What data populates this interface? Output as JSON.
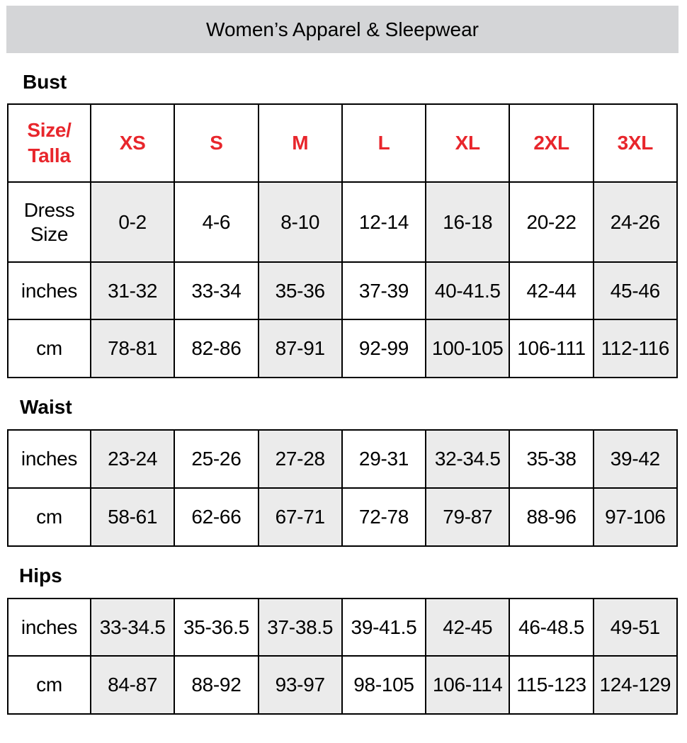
{
  "title": "Women’s Apparel & Sleepwear",
  "header_color": "#e8262c",
  "shade_color": "#ebebeb",
  "sizes": [
    "XS",
    "S",
    "M",
    "L",
    "XL",
    "2XL",
    "3XL"
  ],
  "size_header": [
    "Size/",
    "Talla"
  ],
  "sections": [
    {
      "label": "Bust",
      "rows": [
        {
          "label": [
            "Dress",
            "Size"
          ],
          "values": [
            "0-2",
            "4-6",
            "8-10",
            "12-14",
            "16-18",
            "20-22",
            "24-26"
          ]
        },
        {
          "label": [
            "inches"
          ],
          "values": [
            "31-32",
            "33-34",
            "35-36",
            "37-39",
            "40-41.5",
            "42-44",
            "45-46"
          ]
        },
        {
          "label": [
            "cm"
          ],
          "values": [
            "78-81",
            "82-86",
            "87-91",
            "92-99",
            "100-105",
            "106-111",
            "112-116"
          ]
        }
      ]
    },
    {
      "label": "Waist",
      "rows": [
        {
          "label": [
            "inches"
          ],
          "values": [
            "23-24",
            "25-26",
            "27-28",
            "29-31",
            "32-34.5",
            "35-38",
            "39-42"
          ]
        },
        {
          "label": [
            "cm"
          ],
          "values": [
            "58-61",
            "62-66",
            "67-71",
            "72-78",
            "79-87",
            "88-96",
            "97-106"
          ]
        }
      ]
    },
    {
      "label": "Hips",
      "rows": [
        {
          "label": [
            "inches"
          ],
          "values": [
            "33-34.5",
            "35-36.5",
            "37-38.5",
            "39-41.5",
            "42-45",
            "46-48.5",
            "49-51"
          ]
        },
        {
          "label": [
            "cm"
          ],
          "values": [
            "84-87",
            "88-92",
            "93-97",
            "98-105",
            "106-114",
            "115-123",
            "124-129"
          ]
        }
      ]
    }
  ]
}
